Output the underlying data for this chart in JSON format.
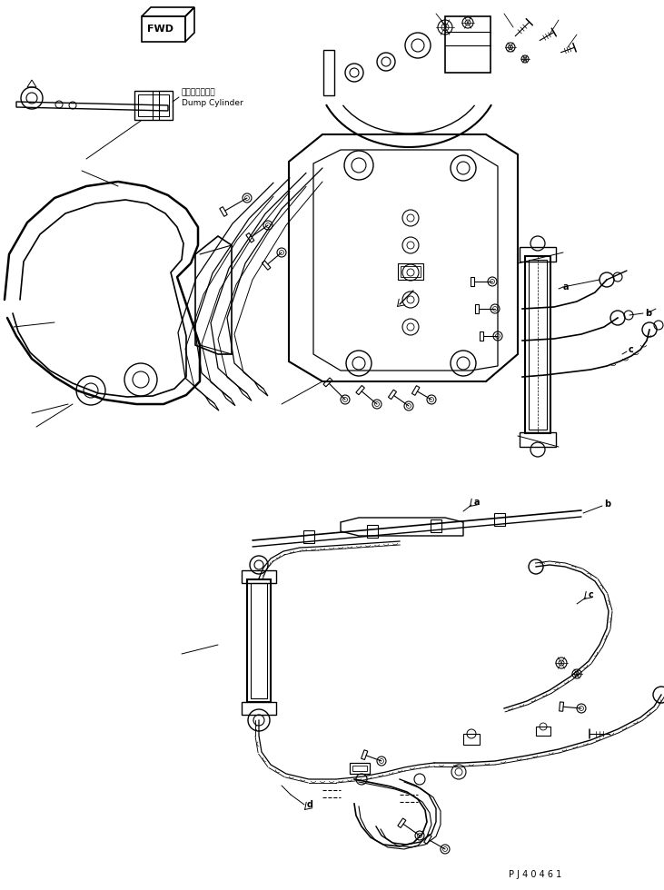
{
  "background_color": "#ffffff",
  "line_color": "#000000",
  "part_id": "P J 4 0 4 6 1",
  "label_dump_cylinder_jp": "ダンプシリンダ",
  "label_dump_cylinder_en": "Dump Cylinder",
  "label_fwd": "FWD",
  "fig_width": 7.31,
  "fig_height": 9.8,
  "dpi": 100
}
